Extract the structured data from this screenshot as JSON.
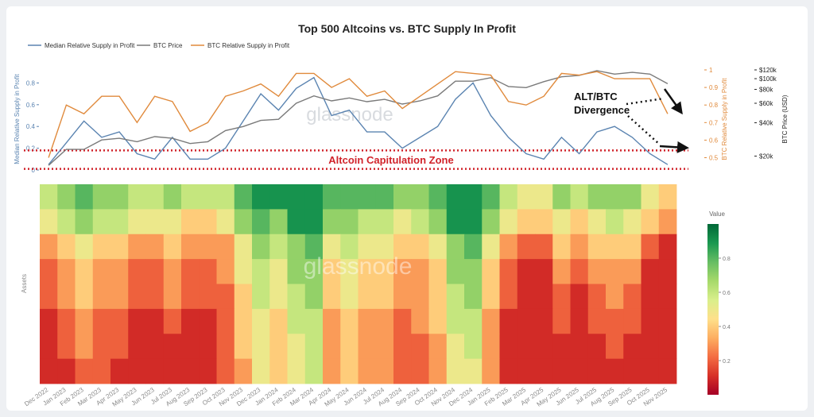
{
  "chart_data": [
    {
      "type": "line",
      "title": "Top 500 Altcoins vs. BTC Supply In Profit",
      "categories": [
        "Dec 2022",
        "Jan 2023",
        "Feb 2023",
        "Mar 2023",
        "Apr 2023",
        "May 2023",
        "Jun 2023",
        "Jul 2023",
        "Aug 2023",
        "Sep 2023",
        "Oct 2023",
        "Nov 2023",
        "Dec 2023",
        "Jan 2024",
        "Feb 2024",
        "Mar 2024",
        "Apr 2024",
        "May 2024",
        "Jun 2024",
        "Jul 2024",
        "Aug 2024",
        "Sep 2024",
        "Oct 2024",
        "Nov 2024",
        "Dec 2024",
        "Jan 2025",
        "Feb 2025",
        "Mar 2025",
        "Apr 2025",
        "May 2025",
        "Jun 2025",
        "Jul 2025",
        "Aug 2025",
        "Sep 2025",
        "Oct 2025",
        "Nov 2025"
      ],
      "series": [
        {
          "name": "Median Relative Supply in Profit",
          "color": "#5b84b1",
          "axis": "y",
          "values": [
            0.05,
            0.25,
            0.45,
            0.3,
            0.35,
            0.15,
            0.1,
            0.3,
            0.1,
            0.1,
            0.2,
            0.45,
            0.7,
            0.55,
            0.75,
            0.85,
            0.5,
            0.55,
            0.35,
            0.35,
            0.2,
            0.3,
            0.4,
            0.65,
            0.8,
            0.5,
            0.3,
            0.15,
            0.1,
            0.3,
            0.15,
            0.35,
            0.4,
            0.3,
            0.15,
            0.05
          ]
        },
        {
          "name": "BTC Price",
          "color": "#7a7a7a",
          "axis": "y3",
          "values": [
            16500,
            23000,
            23000,
            28000,
            29000,
            27000,
            30000,
            29000,
            26000,
            27000,
            34000,
            37000,
            42000,
            43000,
            60000,
            70000,
            63000,
            67000,
            62000,
            65000,
            59000,
            63000,
            70000,
            95000,
            95000,
            102000,
            85000,
            83000,
            94000,
            104000,
            107000,
            118000,
            110000,
            114000,
            110000,
            90000
          ]
        },
        {
          "name": "BTC Relative Supply in Profit",
          "color": "#e08a3c",
          "axis": "y2",
          "values": [
            0.5,
            0.8,
            0.75,
            0.85,
            0.85,
            0.7,
            0.85,
            0.82,
            0.65,
            0.7,
            0.85,
            0.88,
            0.92,
            0.85,
            0.98,
            0.98,
            0.9,
            0.95,
            0.85,
            0.88,
            0.78,
            0.85,
            0.92,
            0.99,
            0.98,
            0.97,
            0.82,
            0.8,
            0.85,
            0.98,
            0.97,
            0.99,
            0.95,
            0.95,
            0.95,
            0.75
          ]
        }
      ],
      "ylabel": "Median Relative Supply in Profit",
      "ylim": [
        0,
        0.92
      ],
      "yticks": [
        0,
        0.2,
        0.4,
        0.6,
        0.8
      ],
      "y2label": "BTC Relative Supply in Profit",
      "y2lim": [
        0.43,
        1
      ],
      "y2ticks": [
        0.5,
        0.6,
        0.7,
        0.8,
        0.9,
        1
      ],
      "y3label": "BTC Price (USD)",
      "y3lim": [
        15000,
        120000
      ],
      "y3log": true,
      "y3ticks": [
        {
          "value": 20000,
          "label": "$20k"
        },
        {
          "value": 40000,
          "label": "$40k"
        },
        {
          "value": 60000,
          "label": "$60k"
        },
        {
          "value": 80000,
          "label": "$80k"
        },
        {
          "value": 100000,
          "label": "$100k"
        },
        {
          "value": 120000,
          "label": "$120k"
        }
      ],
      "capitulation_zone": [
        0.01,
        0.18
      ],
      "capitulation_label": "Altcoin Capitulation Zone",
      "divergence_label": [
        "ALT/BTC",
        "Divergence"
      ],
      "watermark": "glassnode"
    },
    {
      "type": "heatmap",
      "ylabel": "Assets",
      "colorbar_title": "Value",
      "zlim": [
        0,
        1
      ],
      "zticks": [
        0.2,
        0.4,
        0.6,
        0.8
      ],
      "colorscale": [
        "#a50026",
        "#d73027",
        "#f46d43",
        "#fdae61",
        "#fee08b",
        "#d9ef8b",
        "#a6d96a",
        "#66bd63",
        "#1a9850",
        "#006837"
      ],
      "watermark": "glassnode",
      "rows": [
        [
          0.6,
          0.7,
          0.8,
          0.7,
          0.7,
          0.6,
          0.6,
          0.7,
          0.6,
          0.6,
          0.6,
          0.8,
          0.9,
          0.9,
          0.9,
          0.9,
          0.8,
          0.8,
          0.8,
          0.8,
          0.7,
          0.7,
          0.8,
          0.9,
          0.9,
          0.8,
          0.6,
          0.5,
          0.5,
          0.7,
          0.6,
          0.7,
          0.7,
          0.7,
          0.5,
          0.4
        ],
        [
          0.5,
          0.6,
          0.7,
          0.6,
          0.6,
          0.5,
          0.5,
          0.5,
          0.4,
          0.4,
          0.5,
          0.7,
          0.8,
          0.7,
          0.9,
          0.9,
          0.7,
          0.7,
          0.6,
          0.6,
          0.5,
          0.6,
          0.7,
          0.9,
          0.9,
          0.7,
          0.5,
          0.4,
          0.4,
          0.5,
          0.4,
          0.5,
          0.6,
          0.5,
          0.4,
          0.3
        ],
        [
          0.3,
          0.4,
          0.5,
          0.4,
          0.4,
          0.3,
          0.3,
          0.4,
          0.3,
          0.3,
          0.3,
          0.5,
          0.7,
          0.6,
          0.7,
          0.8,
          0.5,
          0.6,
          0.5,
          0.5,
          0.4,
          0.4,
          0.5,
          0.7,
          0.8,
          0.5,
          0.3,
          0.2,
          0.2,
          0.4,
          0.3,
          0.4,
          0.4,
          0.4,
          0.2,
          0.1
        ],
        [
          0.2,
          0.3,
          0.4,
          0.3,
          0.3,
          0.2,
          0.2,
          0.3,
          0.2,
          0.2,
          0.3,
          0.5,
          0.6,
          0.5,
          0.7,
          0.7,
          0.4,
          0.5,
          0.4,
          0.4,
          0.3,
          0.3,
          0.4,
          0.7,
          0.7,
          0.4,
          0.2,
          0.1,
          0.1,
          0.3,
          0.2,
          0.3,
          0.3,
          0.3,
          0.1,
          0.1
        ],
        [
          0.2,
          0.3,
          0.4,
          0.3,
          0.3,
          0.2,
          0.2,
          0.3,
          0.2,
          0.2,
          0.2,
          0.4,
          0.6,
          0.5,
          0.6,
          0.7,
          0.4,
          0.5,
          0.4,
          0.4,
          0.3,
          0.3,
          0.4,
          0.6,
          0.7,
          0.4,
          0.2,
          0.1,
          0.1,
          0.2,
          0.1,
          0.2,
          0.3,
          0.2,
          0.1,
          0.1
        ],
        [
          0.1,
          0.2,
          0.3,
          0.2,
          0.2,
          0.1,
          0.1,
          0.2,
          0.1,
          0.1,
          0.2,
          0.4,
          0.5,
          0.4,
          0.6,
          0.6,
          0.3,
          0.4,
          0.3,
          0.3,
          0.2,
          0.3,
          0.4,
          0.6,
          0.6,
          0.3,
          0.1,
          0.1,
          0.1,
          0.2,
          0.1,
          0.2,
          0.2,
          0.2,
          0.1,
          0.1
        ],
        [
          0.1,
          0.2,
          0.3,
          0.2,
          0.2,
          0.1,
          0.1,
          0.1,
          0.1,
          0.1,
          0.2,
          0.4,
          0.5,
          0.4,
          0.5,
          0.6,
          0.3,
          0.4,
          0.3,
          0.3,
          0.2,
          0.2,
          0.3,
          0.5,
          0.6,
          0.3,
          0.1,
          0.1,
          0.1,
          0.1,
          0.1,
          0.1,
          0.2,
          0.1,
          0.1,
          0.1
        ],
        [
          0.1,
          0.1,
          0.2,
          0.2,
          0.1,
          0.1,
          0.1,
          0.1,
          0.1,
          0.1,
          0.2,
          0.3,
          0.5,
          0.4,
          0.5,
          0.6,
          0.3,
          0.4,
          0.3,
          0.3,
          0.2,
          0.2,
          0.3,
          0.5,
          0.5,
          0.3,
          0.1,
          0.1,
          0.1,
          0.1,
          0.1,
          0.1,
          0.1,
          0.1,
          0.1,
          0.1
        ]
      ]
    }
  ]
}
